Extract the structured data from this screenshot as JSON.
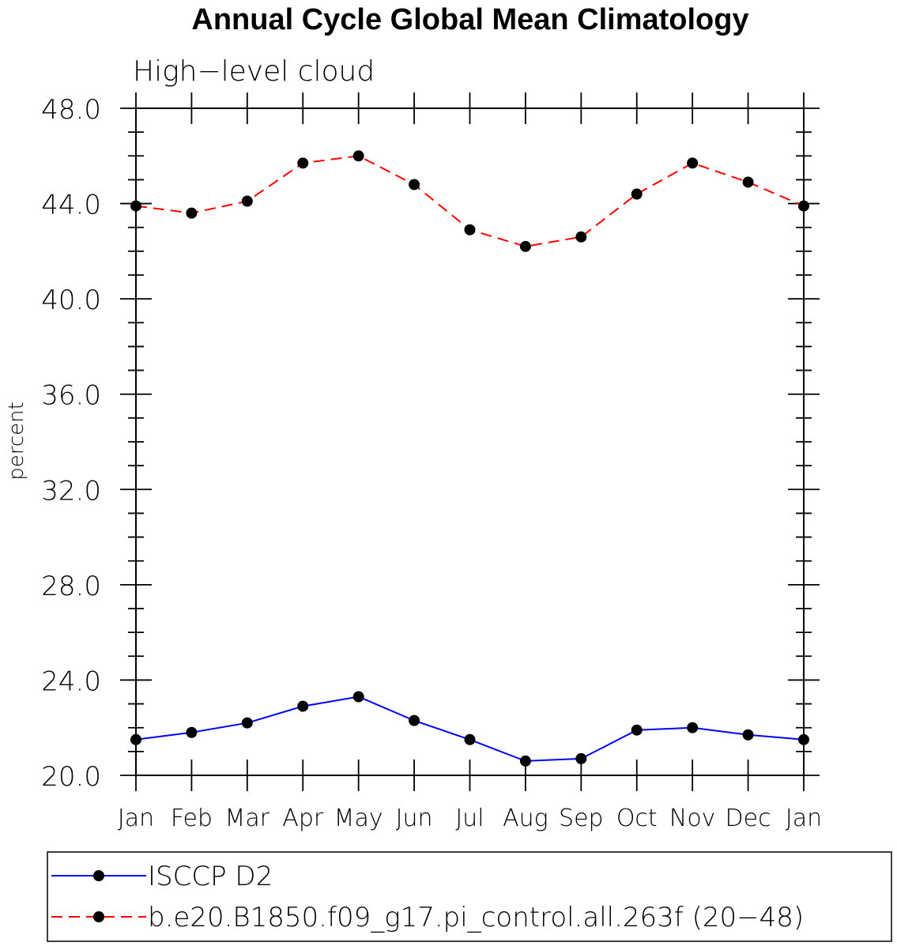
{
  "chart_data": {
    "type": "line",
    "title": "Annual Cycle Global Mean Climatology",
    "subtitle": "High−level cloud",
    "xlabel": "",
    "ylabel": "percent",
    "categories": [
      "Jan",
      "Feb",
      "Mar",
      "Apr",
      "May",
      "Jun",
      "Jul",
      "Aug",
      "Sep",
      "Oct",
      "Nov",
      "Dec",
      "Jan"
    ],
    "ylim": [
      20,
      48
    ],
    "yticks": [
      "20.0",
      "24.0",
      "28.0",
      "32.0",
      "36.0",
      "40.0",
      "44.0",
      "48.0"
    ],
    "grid": false,
    "legend_position": "bottom",
    "series": [
      {
        "name": "ISCCP D2",
        "color": "#0000ff",
        "dash": "solid",
        "marker": "filled-circle",
        "values": [
          21.5,
          21.8,
          22.2,
          22.9,
          23.3,
          22.3,
          21.5,
          20.6,
          20.7,
          21.9,
          22.0,
          21.7,
          21.5
        ]
      },
      {
        "name": "b.e20.B1850.f09_g17.pi_control.all.263f (20−48)",
        "color": "#ff0000",
        "dash": "dashed",
        "marker": "filled-circle",
        "values": [
          43.9,
          43.6,
          44.1,
          45.7,
          46.0,
          44.8,
          42.9,
          42.2,
          42.6,
          44.4,
          45.7,
          44.9,
          43.9
        ]
      }
    ]
  }
}
